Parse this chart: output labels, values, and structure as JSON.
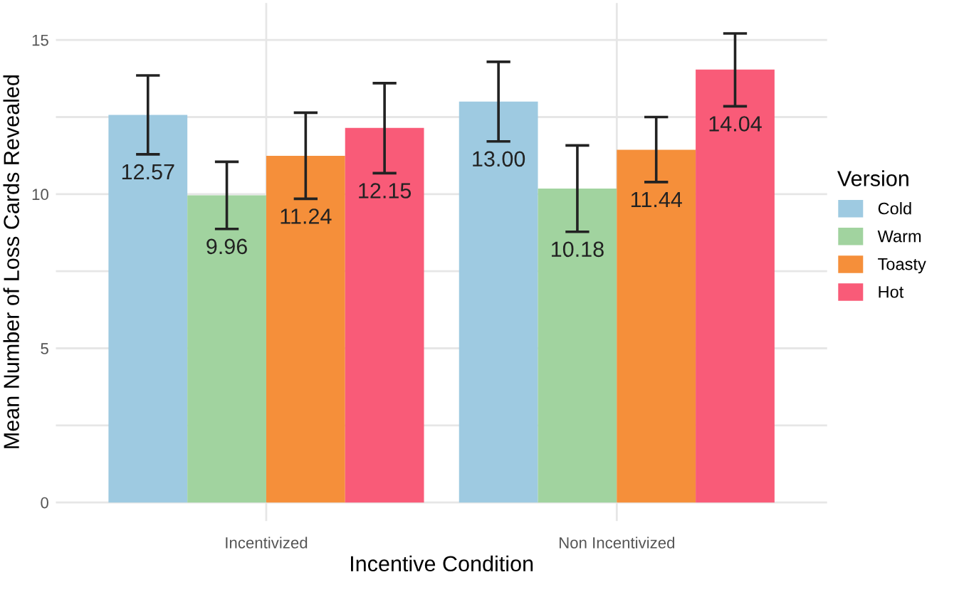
{
  "chart_data": {
    "type": "bar",
    "xlabel": "Incentive Condition",
    "ylabel": "Mean Number of Loss Cards Revealed",
    "legend_title": "Version",
    "legend": "right",
    "grid": true,
    "categories": [
      "Incentivized",
      "Non Incentivized"
    ],
    "ylim": [
      -0.6,
      16.2
    ],
    "yticks": [
      0,
      {
        "value": 2.5,
        "label": null
      },
      5,
      {
        "value": 7.5,
        "label": null
      },
      10,
      {
        "value": 12.5,
        "label": null
      },
      15
    ],
    "series": [
      {
        "name": "Cold",
        "color": "#9ecae1",
        "values": [
          12.57,
          13.0
        ],
        "errors": [
          [
            11.29,
            13.85
          ],
          [
            11.71,
            14.29
          ]
        ],
        "value_labels": [
          "12.57",
          "13.00"
        ]
      },
      {
        "name": "Warm",
        "color": "#a1d39f",
        "values": [
          9.96,
          10.18
        ],
        "errors": [
          [
            8.87,
            11.05
          ],
          [
            8.78,
            11.58
          ]
        ],
        "value_labels": [
          "9.96",
          "10.18"
        ]
      },
      {
        "name": "Toasty",
        "color": "#f58f3a",
        "values": [
          11.24,
          11.44
        ],
        "errors": [
          [
            9.85,
            12.64
          ],
          [
            10.39,
            12.5
          ]
        ],
        "value_labels": [
          "11.24",
          "11.44"
        ]
      },
      {
        "name": "Hot",
        "color": "#f95b78",
        "values": [
          12.15,
          14.04
        ],
        "errors": [
          [
            10.68,
            13.6
          ],
          [
            12.85,
            15.21
          ]
        ],
        "value_labels": [
          "12.15",
          "14.04"
        ]
      }
    ]
  }
}
